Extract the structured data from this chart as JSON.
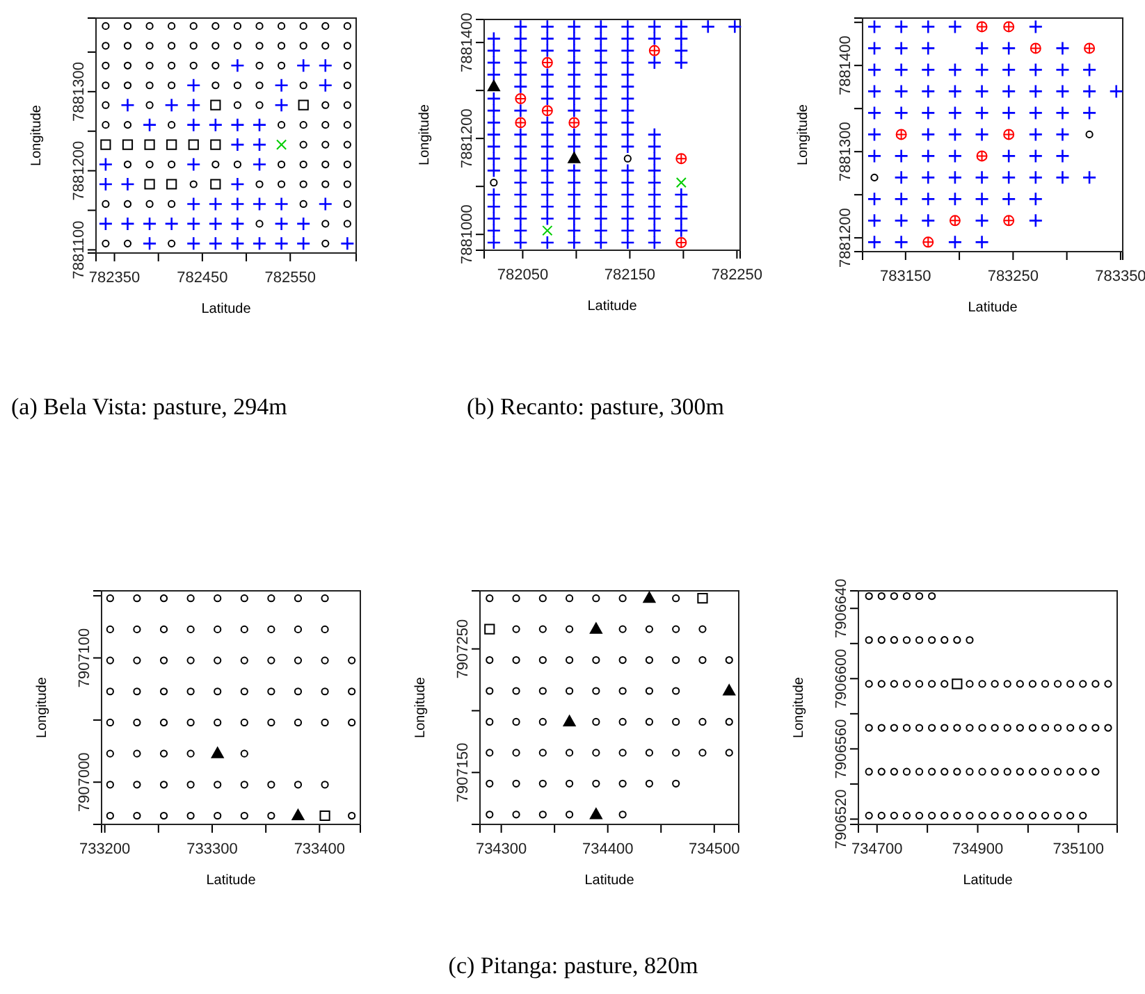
{
  "chart_data": [
    {
      "type": "scatter",
      "xlabel": "Latitude",
      "ylabel": "Longitude",
      "annotations": [
        "(a) Bela Vista: pasture, 294m"
      ],
      "xlim": [
        782329,
        782625
      ],
      "ylim": [
        7881096,
        7881393
      ],
      "xticks": [
        782350,
        {
          "value": 782400,
          "label": null
        },
        782450,
        {
          "value": 782500,
          "label": null
        },
        782550
      ],
      "yticks": [
        7881100,
        {
          "value": 7881150,
          "label": null
        },
        7881200,
        {
          "value": 7881250,
          "label": null
        },
        7881300,
        {
          "value": 7881350,
          "label": null
        }
      ],
      "series": [
        {
          "marker": "circle",
          "color": "#000000",
          "x": [
            782340,
            782365,
            782390,
            782415,
            782440,
            782465,
            782490,
            782515,
            782540,
            782565,
            782590,
            782615,
            782340,
            782365,
            782390,
            782415,
            782440,
            782465,
            782490,
            782515,
            782540,
            782565,
            782590,
            782615,
            782340,
            782365,
            782390,
            782415,
            782440,
            782465,
            782515,
            782540,
            782615,
            782340,
            782365,
            782390,
            782415,
            782465,
            782490,
            782515,
            782565,
            782615,
            782340,
            782390,
            782490,
            782515,
            782590,
            782615,
            782340,
            782365,
            782415,
            782540,
            782565,
            782590,
            782615,
            782565,
            782590,
            782615,
            782365,
            782390,
            782415,
            782465,
            782490,
            782540,
            782565,
            782590,
            782615,
            782440,
            782515,
            782540,
            782565,
            782590,
            782615,
            782340,
            782365,
            782390,
            782415,
            782565,
            782615,
            782515,
            782590,
            782615,
            782340,
            782365,
            782415,
            782590
          ],
          "values": [
            7881383,
            7881383,
            7881383,
            7881383,
            7881383,
            7881383,
            7881383,
            7881383,
            7881383,
            7881383,
            7881383,
            7881383,
            7881358,
            7881358,
            7881358,
            7881358,
            7881358,
            7881358,
            7881358,
            7881358,
            7881358,
            7881358,
            7881358,
            7881358,
            7881333,
            7881333,
            7881333,
            7881333,
            7881333,
            7881333,
            7881333,
            7881333,
            7881333,
            7881308,
            7881308,
            7881308,
            7881308,
            7881308,
            7881308,
            7881308,
            7881308,
            7881308,
            7881283,
            7881283,
            7881283,
            7881283,
            7881283,
            7881283,
            7881258,
            7881258,
            7881258,
            7881258,
            7881258,
            7881258,
            7881258,
            7881233,
            7881233,
            7881233,
            7881208,
            7881208,
            7881208,
            7881208,
            7881208,
            7881208,
            7881208,
            7881208,
            7881208,
            7881183,
            7881183,
            7881183,
            7881183,
            7881183,
            7881183,
            7881158,
            7881158,
            7881158,
            7881158,
            7881158,
            7881158,
            7881133,
            7881133,
            7881133,
            7881108,
            7881108,
            7881108,
            7881108
          ]
        },
        {
          "marker": "plus",
          "color": "#0000ff",
          "x": [
            782490,
            782565,
            782590,
            782440,
            782540,
            782590,
            782365,
            782415,
            782440,
            782540,
            782390,
            782440,
            782465,
            782490,
            782515,
            782490,
            782515,
            782340,
            782440,
            782515,
            782340,
            782365,
            782490,
            782440,
            782465,
            782490,
            782515,
            782540,
            782590,
            782340,
            782365,
            782390,
            782415,
            782440,
            782465,
            782490,
            782540,
            782565,
            782390,
            782440,
            782465,
            782490,
            782515,
            782540,
            782565,
            782615
          ],
          "values": [
            7881333,
            7881333,
            7881333,
            7881308,
            7881308,
            7881308,
            7881283,
            7881283,
            7881283,
            7881283,
            7881258,
            7881258,
            7881258,
            7881258,
            7881258,
            7881233,
            7881233,
            7881208,
            7881208,
            7881208,
            7881183,
            7881183,
            7881183,
            7881158,
            7881158,
            7881158,
            7881158,
            7881158,
            7881158,
            7881133,
            7881133,
            7881133,
            7881133,
            7881133,
            7881133,
            7881133,
            7881133,
            7881133,
            7881108,
            7881108,
            7881108,
            7881108,
            7881108,
            7881108,
            7881108,
            7881108
          ]
        },
        {
          "marker": "square",
          "color": "#000000",
          "x": [
            782465,
            782565,
            782340,
            782365,
            782390,
            782415,
            782440,
            782465,
            782390,
            782415,
            782465
          ],
          "values": [
            7881283,
            7881283,
            7881233,
            7881233,
            7881233,
            7881233,
            7881233,
            7881233,
            7881183,
            7881183,
            7881183
          ]
        },
        {
          "marker": "x",
          "color": "#00cd00",
          "x": [
            782540
          ],
          "values": [
            7881233
          ]
        }
      ]
    },
    {
      "type": "scatter",
      "xlabel": "Latitude",
      "ylabel": "Longitude",
      "annotations": [
        "(b) Recanto: pasture, 300m"
      ],
      "xlim": [
        782014,
        782253
      ],
      "ylim": [
        7880967,
        7881448
      ],
      "xticks": [
        782050,
        {
          "value": 782100,
          "label": null
        },
        782150,
        {
          "value": 782200,
          "label": null
        },
        782250
      ],
      "yticks": [
        7881000,
        {
          "value": 7881100,
          "label": null
        },
        7881200,
        {
          "value": 7881300,
          "label": null
        },
        7881400
      ],
      "series": [
        {
          "marker": "plus",
          "color": "#0000ff",
          "x": [
            782023,
            782023,
            782023,
            782023,
            782023,
            782023,
            782023,
            782023,
            782023,
            782023,
            782023,
            782023,
            782023,
            782023,
            782023,
            782023,
            782048,
            782048,
            782048,
            782048,
            782048,
            782048,
            782048,
            782048,
            782048,
            782048,
            782048,
            782048,
            782048,
            782048,
            782048,
            782048,
            782048,
            782073,
            782073,
            782073,
            782073,
            782073,
            782073,
            782073,
            782073,
            782073,
            782073,
            782073,
            782073,
            782073,
            782073,
            782073,
            782073,
            782098,
            782098,
            782098,
            782098,
            782098,
            782098,
            782098,
            782098,
            782098,
            782098,
            782098,
            782098,
            782098,
            782098,
            782098,
            782098,
            782098,
            782123,
            782123,
            782123,
            782123,
            782123,
            782123,
            782123,
            782123,
            782123,
            782123,
            782123,
            782123,
            782123,
            782123,
            782123,
            782123,
            782123,
            782123,
            782123,
            782148,
            782148,
            782148,
            782148,
            782148,
            782148,
            782148,
            782148,
            782148,
            782148,
            782148,
            782148,
            782148,
            782148,
            782148,
            782148,
            782148,
            782148,
            782173,
            782173,
            782173,
            782173,
            782173,
            782173,
            782173,
            782173,
            782173,
            782173,
            782173,
            782173,
            782173,
            782198,
            782198,
            782198,
            782198,
            782198,
            782198,
            782198,
            782198,
            782223,
            782248
          ],
          "values": [
            7880983,
            7881008,
            7881033,
            7881058,
            7881083,
            7881133,
            7881158,
            7881183,
            7881208,
            7881233,
            7881258,
            7881283,
            7881333,
            7881358,
            7881383,
            7881408,
            7880983,
            7881008,
            7881033,
            7881058,
            7881083,
            7881108,
            7881133,
            7881158,
            7881183,
            7881208,
            7881258,
            7881308,
            7881333,
            7881358,
            7881383,
            7881408,
            7881433,
            7880983,
            7881033,
            7881058,
            7881083,
            7881108,
            7881133,
            7881158,
            7881183,
            7881208,
            7881233,
            7881283,
            7881308,
            7881333,
            7881383,
            7881408,
            7881433,
            7880983,
            7881008,
            7881033,
            7881058,
            7881083,
            7881108,
            7881133,
            7881183,
            7881208,
            7881258,
            7881283,
            7881308,
            7881333,
            7881358,
            7881383,
            7881408,
            7881433,
            7880983,
            7881008,
            7881033,
            7881058,
            7881083,
            7881108,
            7881133,
            7881158,
            7881183,
            7881208,
            7881233,
            7881258,
            7881283,
            7881308,
            7881333,
            7881358,
            7881383,
            7881408,
            7881433,
            7880983,
            7881008,
            7881033,
            7881058,
            7881083,
            7881108,
            7881133,
            7881183,
            7881208,
            7881233,
            7881258,
            7881283,
            7881308,
            7881333,
            7881358,
            7881383,
            7881408,
            7881433,
            7880983,
            7881008,
            7881033,
            7881058,
            7881083,
            7881108,
            7881133,
            7881158,
            7881183,
            7881208,
            7881358,
            7881408,
            7881433,
            7881008,
            7881033,
            7881058,
            7881083,
            7881358,
            7881383,
            7881408,
            7881433,
            7881433,
            7881433
          ]
        },
        {
          "marker": "cross",
          "color": "#ff0000",
          "x": [
            782048,
            782048,
            782073,
            782073,
            782098,
            782173,
            782198,
            782198
          ],
          "values": [
            7881233,
            7881283,
            7881258,
            7881358,
            7881233,
            7881383,
            7881158,
            7880983
          ]
        },
        {
          "marker": "triangle",
          "color": "#000000",
          "x": [
            782023,
            782098
          ],
          "values": [
            7881308,
            7881158
          ]
        },
        {
          "marker": "circle",
          "color": "#000000",
          "x": [
            782023,
            782148
          ],
          "values": [
            7881108,
            7881158
          ]
        },
        {
          "marker": "x",
          "color": "#00cd00",
          "x": [
            782073,
            782198
          ],
          "values": [
            7881008,
            7881108
          ]
        }
      ]
    },
    {
      "type": "scatter",
      "xlabel": "Latitude",
      "ylabel": "Longitude",
      "xlim": [
        783110,
        783352
      ],
      "ylim": [
        7881184,
        7881455
      ],
      "xticks": [
        783150,
        {
          "value": 783200,
          "label": null
        },
        783250,
        {
          "value": 783300,
          "label": null
        },
        783350
      ],
      "yticks": [
        7881200,
        {
          "value": 7881250,
          "label": null
        },
        7881300,
        {
          "value": 7881350,
          "label": null
        },
        7881400,
        {
          "value": 7881450,
          "label": null
        }
      ],
      "series": [
        {
          "marker": "plus",
          "color": "#0000ff",
          "x": [
            783121,
            783146,
            783171,
            783196,
            783271,
            783121,
            783146,
            783171,
            783221,
            783246,
            783296,
            783121,
            783146,
            783171,
            783196,
            783221,
            783246,
            783271,
            783296,
            783321,
            783121,
            783146,
            783171,
            783196,
            783221,
            783246,
            783271,
            783296,
            783321,
            783346,
            783121,
            783146,
            783171,
            783196,
            783221,
            783246,
            783271,
            783296,
            783321,
            783121,
            783171,
            783196,
            783221,
            783271,
            783296,
            783121,
            783146,
            783171,
            783196,
            783246,
            783271,
            783296,
            783146,
            783171,
            783196,
            783221,
            783246,
            783271,
            783296,
            783321,
            783121,
            783146,
            783171,
            783196,
            783221,
            783246,
            783271,
            783121,
            783146,
            783171,
            783221,
            783271,
            783121,
            783146,
            783196,
            783221
          ],
          "values": [
            7881445,
            7881445,
            7881445,
            7881445,
            7881445,
            7881420,
            7881420,
            7881420,
            7881420,
            7881420,
            7881420,
            7881395,
            7881395,
            7881395,
            7881395,
            7881395,
            7881395,
            7881395,
            7881395,
            7881395,
            7881370,
            7881370,
            7881370,
            7881370,
            7881370,
            7881370,
            7881370,
            7881370,
            7881370,
            7881370,
            7881345,
            7881345,
            7881345,
            7881345,
            7881345,
            7881345,
            7881345,
            7881345,
            7881345,
            7881320,
            7881320,
            7881320,
            7881320,
            7881320,
            7881320,
            7881295,
            7881295,
            7881295,
            7881295,
            7881295,
            7881295,
            7881295,
            7881270,
            7881270,
            7881270,
            7881270,
            7881270,
            7881270,
            7881270,
            7881270,
            7881245,
            7881245,
            7881245,
            7881245,
            7881245,
            7881245,
            7881245,
            7881220,
            7881220,
            7881220,
            7881220,
            7881220,
            7881195,
            7881195,
            7881195,
            7881195
          ]
        },
        {
          "marker": "cross",
          "color": "#ff0000",
          "x": [
            783221,
            783246,
            783271,
            783321,
            783146,
            783246,
            783221,
            783196,
            783246,
            783171
          ],
          "values": [
            7881445,
            7881445,
            7881420,
            7881420,
            7881320,
            7881320,
            7881295,
            7881220,
            7881220,
            7881195
          ]
        },
        {
          "marker": "circle",
          "color": "#000000",
          "x": [
            783321,
            783121
          ],
          "values": [
            7881320,
            7881270
          ]
        }
      ]
    },
    {
      "type": "scatter",
      "xlabel": "Latitude",
      "ylabel": "Longitude",
      "annotations": [
        "(c) Pitanga: pasture, 820m"
      ],
      "xlim": [
        733197,
        733438
      ],
      "ylim": [
        7906966,
        7907154
      ],
      "xticks": [
        733200,
        {
          "value": 733250,
          "label": null
        },
        733300,
        {
          "value": 733350,
          "label": null
        },
        733400
      ],
      "yticks": [
        7907000,
        {
          "value": 7907050,
          "label": null
        },
        7907100,
        {
          "value": 7907150,
          "label": null
        }
      ],
      "series": [
        {
          "marker": "circle",
          "color": "#000000",
          "x": [
            733205,
            733230,
            733255,
            733280,
            733305,
            733330,
            733355,
            733380,
            733405,
            733205,
            733230,
            733255,
            733280,
            733305,
            733330,
            733355,
            733380,
            733405,
            733205,
            733230,
            733255,
            733280,
            733305,
            733330,
            733355,
            733380,
            733405,
            733430,
            733205,
            733230,
            733255,
            733280,
            733305,
            733330,
            733355,
            733380,
            733405,
            733430,
            733205,
            733230,
            733255,
            733280,
            733305,
            733330,
            733355,
            733380,
            733405,
            733430,
            733205,
            733230,
            733255,
            733280,
            733330,
            733205,
            733230,
            733255,
            733280,
            733305,
            733330,
            733355,
            733380,
            733405,
            733205,
            733230,
            733255,
            733280,
            733305,
            733330,
            733355,
            733430
          ],
          "values": [
            7907148,
            7907148,
            7907148,
            7907148,
            7907148,
            7907148,
            7907148,
            7907148,
            7907148,
            7907123,
            7907123,
            7907123,
            7907123,
            7907123,
            7907123,
            7907123,
            7907123,
            7907123,
            7907098,
            7907098,
            7907098,
            7907098,
            7907098,
            7907098,
            7907098,
            7907098,
            7907098,
            7907098,
            7907073,
            7907073,
            7907073,
            7907073,
            7907073,
            7907073,
            7907073,
            7907073,
            7907073,
            7907073,
            7907048,
            7907048,
            7907048,
            7907048,
            7907048,
            7907048,
            7907048,
            7907048,
            7907048,
            7907048,
            7907023,
            7907023,
            7907023,
            7907023,
            7907023,
            7906998,
            7906998,
            7906998,
            7906998,
            7906998,
            7906998,
            7906998,
            7906998,
            7906998,
            7906973,
            7906973,
            7906973,
            7906973,
            7906973,
            7906973,
            7906973,
            7906973
          ]
        },
        {
          "marker": "triangle",
          "color": "#000000",
          "x": [
            733305,
            733380
          ],
          "values": [
            7907023,
            7906973
          ]
        },
        {
          "marker": "square",
          "color": "#000000",
          "x": [
            733405
          ],
          "values": [
            7906973
          ]
        }
      ]
    },
    {
      "type": "scatter",
      "xlabel": "Latitude",
      "ylabel": "Longitude",
      "xlim": [
        734280,
        734523
      ],
      "ylim": [
        7907108,
        7907297
      ],
      "xticks": [
        734300,
        {
          "value": 734350,
          "label": null
        },
        734400,
        {
          "value": 734450,
          "label": null
        },
        734500
      ],
      "yticks": [
        7907150,
        {
          "value": 7907200,
          "label": null
        },
        7907250
      ],
      "series": [
        {
          "marker": "circle",
          "color": "#000000",
          "x": [
            734289,
            734314,
            734339,
            734364,
            734389,
            734414,
            734464,
            734314,
            734339,
            734364,
            734414,
            734439,
            734464,
            734489,
            734289,
            734314,
            734339,
            734364,
            734389,
            734414,
            734439,
            734464,
            734489,
            734514,
            734289,
            734314,
            734339,
            734364,
            734389,
            734414,
            734439,
            734464,
            734289,
            734314,
            734339,
            734389,
            734414,
            734439,
            734464,
            734489,
            734514,
            734289,
            734314,
            734339,
            734364,
            734389,
            734414,
            734439,
            734464,
            734489,
            734514,
            734289,
            734314,
            734339,
            734364,
            734389,
            734414,
            734439,
            734464,
            734289,
            734314,
            734339,
            734364,
            734414
          ],
          "values": [
            7907291,
            7907291,
            7907291,
            7907291,
            7907291,
            7907291,
            7907291,
            7907266,
            7907266,
            7907266,
            7907266,
            7907266,
            7907266,
            7907266,
            7907241,
            7907241,
            7907241,
            7907241,
            7907241,
            7907241,
            7907241,
            7907241,
            7907241,
            7907241,
            7907216,
            7907216,
            7907216,
            7907216,
            7907216,
            7907216,
            7907216,
            7907216,
            7907191,
            7907191,
            7907191,
            7907191,
            7907191,
            7907191,
            7907191,
            7907191,
            7907191,
            7907166,
            7907166,
            7907166,
            7907166,
            7907166,
            7907166,
            7907166,
            7907166,
            7907166,
            7907166,
            7907141,
            7907141,
            7907141,
            7907141,
            7907141,
            7907141,
            7907141,
            7907141,
            7907116,
            7907116,
            7907116,
            7907116,
            7907116
          ]
        },
        {
          "marker": "triangle",
          "color": "#000000",
          "x": [
            734439,
            734389,
            734514,
            734364,
            734389
          ],
          "values": [
            7907291,
            7907266,
            7907216,
            7907191,
            7907116
          ]
        },
        {
          "marker": "square",
          "color": "#000000",
          "x": [
            734489,
            734289
          ],
          "values": [
            7907291,
            7907266
          ]
        }
      ]
    },
    {
      "type": "scatter",
      "xlabel": "Latitude",
      "ylabel": "Longitude",
      "xlim": [
        734663,
        735177
      ],
      "ylim": [
        7906517,
        7906650
      ],
      "xticks": [
        734700,
        {
          "value": 734800,
          "label": null
        },
        734900,
        {
          "value": 735000,
          "label": null
        },
        735100
      ],
      "yticks": [
        7906520,
        {
          "value": 7906540,
          "label": null
        },
        7906560,
        {
          "value": 7906580,
          "label": null
        },
        7906600,
        {
          "value": 7906620,
          "label": null
        },
        7906640
      ],
      "series": [
        {
          "marker": "circle",
          "color": "#000000",
          "x": [
            734684,
            734709,
            734734,
            734759,
            734784,
            734809,
            734684,
            734709,
            734734,
            734759,
            734784,
            734809,
            734834,
            734859,
            734884,
            734684,
            734709,
            734734,
            734759,
            734784,
            734809,
            734834,
            734884,
            734909,
            734934,
            734959,
            734984,
            735009,
            735034,
            735059,
            735084,
            735109,
            735134,
            735159,
            734684,
            734709,
            734734,
            734759,
            734784,
            734809,
            734834,
            734859,
            734884,
            734909,
            734934,
            734959,
            734984,
            735009,
            735034,
            735059,
            735084,
            735109,
            735134,
            735159,
            734684,
            734709,
            734734,
            734759,
            734784,
            734809,
            734834,
            734859,
            734884,
            734909,
            734934,
            734959,
            734984,
            735009,
            735034,
            735059,
            735084,
            735109,
            735134,
            734684,
            734709,
            734734,
            734759,
            734784,
            734809,
            734834,
            734859,
            734884,
            734909,
            734934,
            734959,
            734984,
            735009,
            735034,
            735059,
            735084,
            735109
          ],
          "values": [
            7906647,
            7906647,
            7906647,
            7906647,
            7906647,
            7906647,
            7906622,
            7906622,
            7906622,
            7906622,
            7906622,
            7906622,
            7906622,
            7906622,
            7906622,
            7906597,
            7906597,
            7906597,
            7906597,
            7906597,
            7906597,
            7906597,
            7906597,
            7906597,
            7906597,
            7906597,
            7906597,
            7906597,
            7906597,
            7906597,
            7906597,
            7906597,
            7906597,
            7906597,
            7906572,
            7906572,
            7906572,
            7906572,
            7906572,
            7906572,
            7906572,
            7906572,
            7906572,
            7906572,
            7906572,
            7906572,
            7906572,
            7906572,
            7906572,
            7906572,
            7906572,
            7906572,
            7906572,
            7906572,
            7906547,
            7906547,
            7906547,
            7906547,
            7906547,
            7906547,
            7906547,
            7906547,
            7906547,
            7906547,
            7906547,
            7906547,
            7906547,
            7906547,
            7906547,
            7906547,
            7906547,
            7906547,
            7906547,
            7906522,
            7906522,
            7906522,
            7906522,
            7906522,
            7906522,
            7906522,
            7906522,
            7906522,
            7906522,
            7906522,
            7906522,
            7906522,
            7906522,
            7906522,
            7906522,
            7906522,
            7906522
          ]
        },
        {
          "marker": "square",
          "color": "#000000",
          "x": [
            734859
          ],
          "values": [
            7906597
          ]
        }
      ]
    }
  ]
}
